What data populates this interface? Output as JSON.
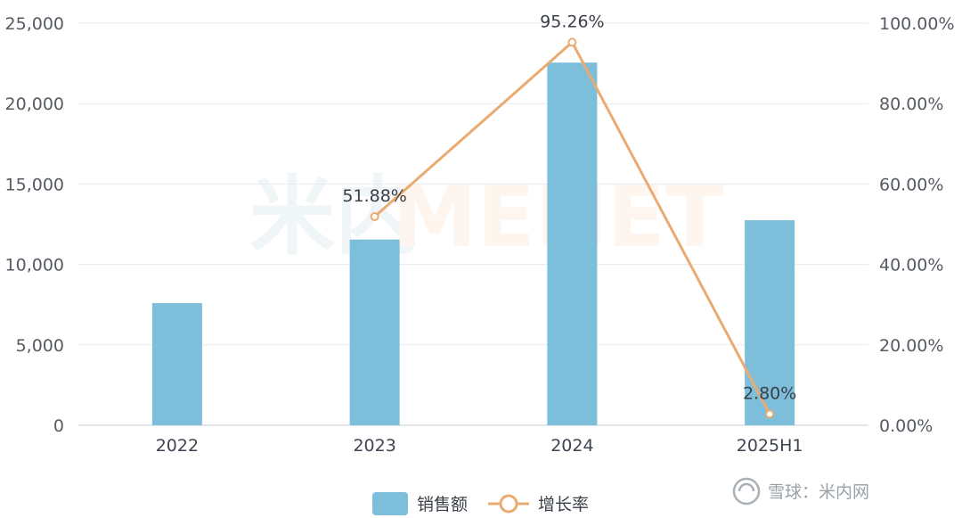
{
  "chart_data": {
    "type": "bar",
    "categories": [
      "2022",
      "2023",
      "2024",
      "2025H1"
    ],
    "series": [
      {
        "name": "销售额",
        "type": "bar",
        "axis": "left",
        "values": [
          7600,
          11550,
          22550,
          12750
        ],
        "color": "#7dbedb"
      },
      {
        "name": "增长率",
        "type": "line",
        "axis": "right",
        "values": [
          null,
          51.88,
          95.26,
          2.8
        ],
        "labels": [
          "",
          "51.88%",
          "95.26%",
          "2.80%"
        ],
        "color": "#e9ab72"
      }
    ],
    "y_left": {
      "min": 0,
      "max": 25000,
      "ticks": [
        "0",
        "5,000",
        "10,000",
        "15,000",
        "20,000",
        "25,000"
      ]
    },
    "y_right": {
      "min": 0,
      "max": 100,
      "ticks": [
        "0.00%",
        "20.00%",
        "40.00%",
        "60.00%",
        "80.00%",
        "100.00%"
      ]
    },
    "grid": true,
    "legend_position": "bottom-center"
  },
  "background_watermark": {
    "cn": "米内",
    "en": "MENET"
  },
  "watermark": {
    "text": "雪球：米内网"
  }
}
